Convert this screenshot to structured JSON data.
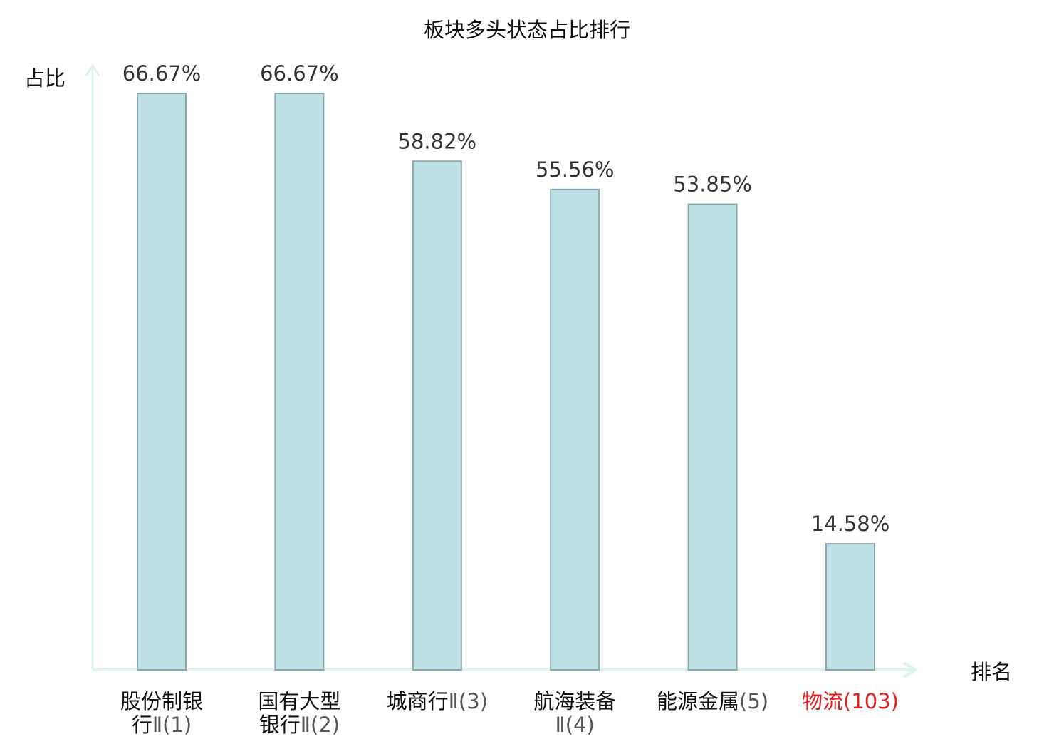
{
  "chart_data": {
    "type": "bar",
    "title": "板块多头状态占比排行",
    "ylabel": "占比",
    "xlabel": "排名",
    "categories": [
      {
        "name_lines": [
          "股份制银",
          "行"
        ],
        "rank_lines": [
          "",
          "Ⅱ(1)"
        ]
      },
      {
        "name_lines": [
          "国有大型",
          "银行"
        ],
        "rank_lines": [
          "",
          "Ⅱ(2)"
        ]
      },
      {
        "name_lines": [
          "城商行"
        ],
        "rank_lines": [
          "Ⅱ(3)"
        ]
      },
      {
        "name_lines": [
          "航海装备",
          ""
        ],
        "rank_lines": [
          "",
          "Ⅱ(4)"
        ]
      },
      {
        "name_lines": [
          "能源金属"
        ],
        "rank_lines": [
          "(5)"
        ]
      },
      {
        "name_lines": [
          "物流"
        ],
        "rank_lines": [
          "(103)"
        ],
        "highlight": true
      }
    ],
    "values": [
      66.67,
      66.67,
      58.82,
      55.56,
      53.85,
      14.58
    ],
    "value_labels": [
      "66.67%",
      "66.67%",
      "58.82%",
      "55.56%",
      "53.85%",
      "14.58%"
    ],
    "ylim": [
      0,
      66.67
    ],
    "grid": false,
    "legend": "none",
    "colors": {
      "bar_fill": "#bce0e3",
      "bar_stroke": "#8aa9ab",
      "axis": "#dff2f0",
      "text": "#333333",
      "category_text": "#111111",
      "rank_text": "#555555",
      "highlight": "#e02020"
    }
  }
}
